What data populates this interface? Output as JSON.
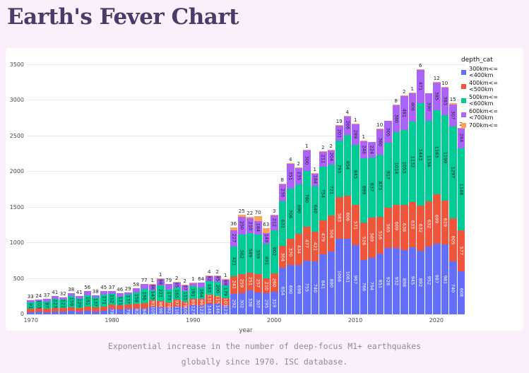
{
  "page": {
    "title": "Earth's Fever Chart",
    "caption_line1": "Exponential increase in the number of deep-focus M1+ earthquakes",
    "caption_line2": "globally since 1970. ISC database."
  },
  "colors": {
    "page_background": "#faeffa",
    "card_background": "#ffffff",
    "title_text": "#4a3b69",
    "caption_text": "#8f8f8f",
    "grid": "#e9e9e9",
    "tick_text": "#4a4a4a"
  },
  "chart_data": {
    "type": "bar",
    "stacked": true,
    "xlabel": "year",
    "ylabel": "",
    "legend_title": "depth_cat",
    "ylim": [
      0,
      3500
    ],
    "yticks": [
      0,
      500,
      1000,
      1500,
      2000,
      2500,
      3000,
      3500
    ],
    "xticks": [
      1970,
      1980,
      1990,
      2000,
      2010,
      2020
    ],
    "grid": true,
    "legend_position": "right",
    "categories": [
      1970,
      1971,
      1972,
      1973,
      1974,
      1975,
      1976,
      1977,
      1978,
      1979,
      1980,
      1981,
      1982,
      1983,
      1984,
      1985,
      1986,
      1987,
      1988,
      1989,
      1990,
      1991,
      1992,
      1993,
      1994,
      1995,
      1996,
      1997,
      1998,
      1999,
      2000,
      2001,
      2002,
      2003,
      2004,
      2005,
      2006,
      2007,
      2008,
      2009,
      2010,
      2011,
      2012,
      2013,
      2014,
      2015,
      2016,
      2017,
      2018,
      2019,
      2020,
      2021,
      2022,
      2023
    ],
    "series": [
      {
        "name": "300km<= <400km",
        "color": "#636efa",
        "label_color": "#ffffff",
        "values": [
          30,
          35,
          32,
          40,
          38,
          45,
          40,
          48,
          42,
          50,
          78,
          72,
          79,
          82,
          84,
          105,
          98,
          92,
          110,
          100,
          127,
          122,
          148,
          146,
          123,
          292,
          302,
          338,
          307,
          295,
          319,
          654,
          690,
          698,
          755,
          740,
          841,
          880,
          1066,
          1061,
          967,
          766,
          794,
          851,
          928,
          932,
          898,
          945,
          892,
          952,
          987,
          981,
          740,
          608
        ]
      },
      {
        "name": "400km<= <500km",
        "color": "#ef553b",
        "label_color": "#ffffff",
        "values": [
          45,
          50,
          48,
          52,
          50,
          55,
          52,
          58,
          55,
          60,
          62,
          58,
          60,
          65,
          74,
          91,
          86,
          78,
          97,
          79,
          89,
          96,
          131,
          115,
          101,
          241,
          259,
          251,
          257,
          210,
          260,
          304,
          370,
          434,
          477,
          421,
          479,
          504,
          583,
          606,
          571,
          526,
          569,
          516,
          565,
          609,
          638,
          633,
          632,
          632,
          699,
          619,
          605,
          577
        ]
      },
      {
        "name": "500km<= <600km",
        "color": "#00cc96",
        "label_color": "#1d2025",
        "values": [
          91,
          103,
          97,
          123,
          121,
          159,
          129,
          161,
          137,
          171,
          152,
          121,
          137,
          158,
          196,
          143,
          221,
          173,
          165,
          151,
          181,
          164,
          183,
          200,
          179,
          421,
          562,
          549,
          559,
          491,
          602,
          631,
          706,
          690,
          780,
          640,
          754,
          721,
          793,
          854,
          845,
          899,
          837,
          873,
          917,
          1014,
          1053,
          1132,
          1443,
          1134,
          1183,
          1199,
          1297,
          1148
        ]
      },
      {
        "name": "600km<= <700km",
        "color": "#ab63fa",
        "label_color": "#1d2025",
        "values": [
          33,
          24,
          37,
          41,
          32,
          38,
          41,
          56,
          38,
          45,
          37,
          46,
          29,
          58,
          77,
          86,
          98,
          79,
          85,
          87,
          52,
          64,
          82,
          85,
          88,
          227,
          250,
          210,
          184,
          149,
          212,
          236,
          351,
          235,
          300,
          184,
          211,
          204,
          201,
          266,
          289,
          246,
          224,
          360,
          305,
          380,
          481,
          406,
          471,
          390,
          385,
          383,
          307,
          284
        ]
      },
      {
        "name": "700km<=",
        "color": "#ffa15a",
        "label_color": "#1d2025",
        "values": [
          0,
          0,
          0,
          0,
          0,
          0,
          0,
          0,
          0,
          0,
          0,
          0,
          0,
          0,
          0,
          1,
          1,
          0,
          2,
          2,
          1,
          0,
          4,
          2,
          1,
          36,
          25,
          22,
          70,
          63,
          3,
          8,
          4,
          2,
          1,
          1,
          2,
          2,
          19,
          4,
          1,
          1,
          0,
          10,
          0,
          8,
          2,
          1,
          6,
          0,
          12,
          10,
          15,
          2
        ]
      }
    ]
  }
}
